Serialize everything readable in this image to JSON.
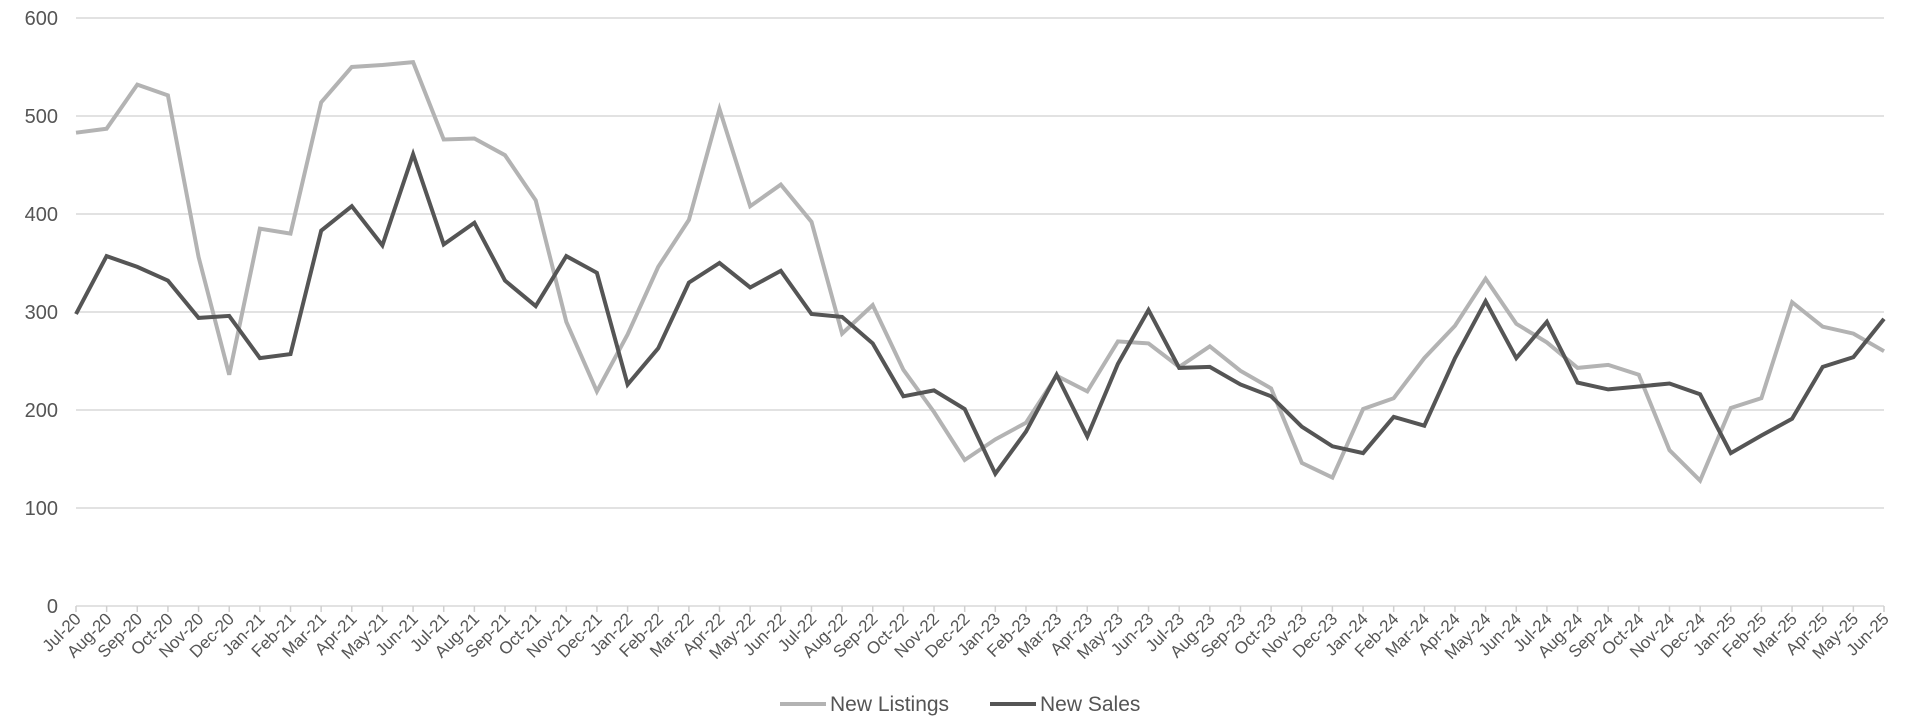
{
  "chart_data": {
    "type": "line",
    "title": "",
    "xlabel": "",
    "ylabel": "",
    "ylim": [
      0,
      600
    ],
    "yticks": [
      0,
      100,
      200,
      300,
      400,
      500,
      600
    ],
    "grid": true,
    "legend_position": "bottom-center",
    "categories": [
      "Jul-20",
      "Aug-20",
      "Sep-20",
      "Oct-20",
      "Nov-20",
      "Dec-20",
      "Jan-21",
      "Feb-21",
      "Mar-21",
      "Apr-21",
      "May-21",
      "Jun-21",
      "Jul-21",
      "Aug-21",
      "Sep-21",
      "Oct-21",
      "Nov-21",
      "Dec-21",
      "Jan-22",
      "Feb-22",
      "Mar-22",
      "Apr-22",
      "May-22",
      "Jun-22",
      "Jul-22",
      "Aug-22",
      "Sep-22",
      "Oct-22",
      "Nov-22",
      "Dec-22",
      "Jan-23",
      "Feb-23",
      "Mar-23",
      "Apr-23",
      "May-23",
      "Jun-23",
      "Jul-23",
      "Aug-23",
      "Sep-23",
      "Oct-23",
      "Nov-23",
      "Dec-23",
      "Jan-24",
      "Feb-24",
      "Mar-24",
      "Apr-24",
      "May-24",
      "Jun-24",
      "Jul-24",
      "Aug-24",
      "Sep-24",
      "Oct-24",
      "Nov-24",
      "Dec-24",
      "Jan-25",
      "Feb-25",
      "Mar-25",
      "Apr-25",
      "May-25",
      "Jun-25"
    ],
    "series": [
      {
        "name": "New Listings",
        "color": "#b3b3b3",
        "values": [
          483,
          487,
          532,
          521,
          356,
          236,
          385,
          380,
          514,
          550,
          552,
          555,
          476,
          477,
          460,
          414,
          290,
          219,
          277,
          346,
          394,
          507,
          408,
          430,
          392,
          278,
          307,
          241,
          198,
          149,
          170,
          187,
          235,
          219,
          270,
          268,
          244,
          265,
          240,
          222,
          146,
          131,
          201,
          212,
          253,
          286,
          334,
          288,
          269,
          243,
          246,
          236,
          159,
          128,
          202,
          212,
          310,
          285,
          278,
          260
        ]
      },
      {
        "name": "New Sales",
        "color": "#555555",
        "values": [
          298,
          357,
          346,
          332,
          294,
          296,
          253,
          257,
          383,
          408,
          368,
          461,
          369,
          391,
          332,
          306,
          357,
          340,
          226,
          263,
          330,
          350,
          325,
          342,
          298,
          295,
          268,
          214,
          220,
          201,
          135,
          178,
          236,
          173,
          247,
          302,
          243,
          244,
          226,
          214,
          183,
          163,
          156,
          193,
          184,
          253,
          311,
          253,
          290,
          228,
          221,
          224,
          227,
          216,
          156,
          174,
          191,
          244,
          254,
          293
        ]
      }
    ]
  },
  "colors": {
    "grid": "#d9d9d9",
    "text": "#555555",
    "axis": "#d9d9d9"
  }
}
